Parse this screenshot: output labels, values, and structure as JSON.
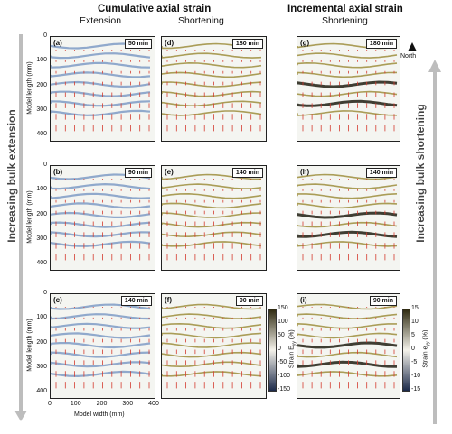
{
  "headers": {
    "cumulative": "Cumulative axial strain",
    "incremental": "Incremental axial strain",
    "col1": "Extension",
    "col2": "Shortening",
    "col3": "Shortening"
  },
  "side_labels": {
    "left": "Increasing bulk extension",
    "right": "Increasing bulk shortening"
  },
  "north_label": "North",
  "axes": {
    "ylabel": "Model length (mm)",
    "xlabel": "Model width (mm)",
    "yticks": [
      "0",
      "100",
      "200",
      "300",
      "400"
    ],
    "xticks": [
      "0",
      "100",
      "200",
      "300",
      "400"
    ]
  },
  "panels": [
    {
      "id": "(a)",
      "time": "50 min"
    },
    {
      "id": "(b)",
      "time": "90 min"
    },
    {
      "id": "(c)",
      "time": "140 min"
    },
    {
      "id": "(d)",
      "time": "180 min"
    },
    {
      "id": "(e)",
      "time": "140 min"
    },
    {
      "id": "(f)",
      "time": "90 min"
    },
    {
      "id": "(g)",
      "time": "180 min"
    },
    {
      "id": "(h)",
      "time": "140 min"
    },
    {
      "id": "(i)",
      "time": "90 min"
    }
  ],
  "colorbar_cumulative": {
    "label": "Strain E",
    "sub": "yy",
    "unit": " (%)",
    "ticks": [
      "150",
      "100",
      "50",
      "0",
      "-50",
      "-100",
      "-150"
    ],
    "colors": {
      "high": "#2f2a10",
      "mid": "#f4f2ea",
      "low": "#1c2a4a"
    }
  },
  "colorbar_incremental": {
    "label": "Strain e",
    "sub": "yy",
    "unit": " (%)",
    "ticks": [
      "15",
      "10",
      "5",
      "0",
      "-5",
      "-10",
      "-15"
    ],
    "colors": {
      "high": "#2f2a10",
      "mid": "#f4f2ea",
      "low": "#1c2a4a"
    }
  },
  "colors": {
    "extension": "#6f8fbf",
    "shortening": "#9c8d3c",
    "arrow": "#d43b2f",
    "dark_band": "#1f1d12"
  }
}
